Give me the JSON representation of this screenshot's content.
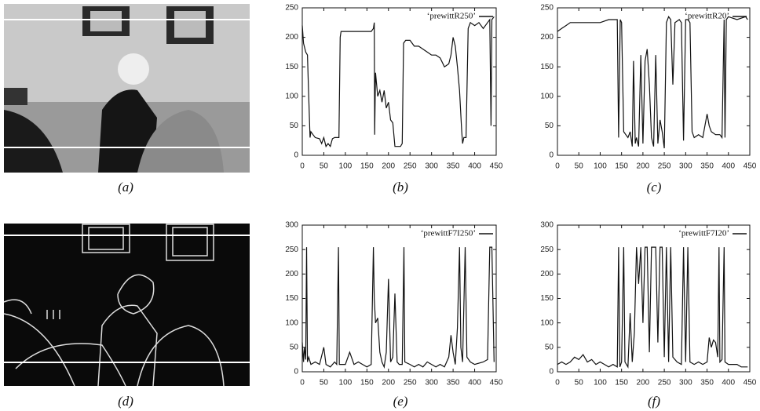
{
  "captions": [
    "(a)",
    "(b)",
    "(c)",
    "(d)",
    "(e)",
    "(f)"
  ],
  "chart_data": [
    {
      "type": "line",
      "xlim": [
        0,
        450
      ],
      "xticks": [
        0,
        50,
        100,
        150,
        200,
        250,
        300,
        350,
        400,
        450
      ],
      "ylim": [
        0,
        250
      ],
      "yticks": [
        0,
        50,
        100,
        150,
        200,
        250
      ],
      "x": [
        0,
        3,
        8,
        12,
        15,
        18,
        20,
        25,
        30,
        40,
        45,
        50,
        55,
        60,
        65,
        70,
        75,
        80,
        85,
        88,
        90,
        100,
        120,
        140,
        160,
        165,
        167,
        168,
        170,
        175,
        180,
        185,
        190,
        195,
        200,
        205,
        210,
        215,
        220,
        228,
        232,
        235,
        240,
        250,
        260,
        270,
        280,
        290,
        300,
        310,
        320,
        330,
        340,
        345,
        350,
        355,
        360,
        365,
        370,
        372,
        375,
        380,
        385,
        390,
        400,
        410,
        420,
        430,
        435,
        438,
        440,
        445
      ],
      "series": [
        {
          "name": "‘prewittR250’",
          "color": "#111111",
          "values": [
            220,
            190,
            175,
            170,
            100,
            30,
            40,
            35,
            30,
            28,
            20,
            30,
            15,
            20,
            15,
            28,
            30,
            30,
            30,
            200,
            210,
            210,
            210,
            210,
            210,
            215,
            225,
            35,
            140,
            100,
            110,
            90,
            110,
            80,
            90,
            60,
            55,
            15,
            15,
            15,
            20,
            190,
            195,
            195,
            185,
            185,
            180,
            175,
            170,
            170,
            165,
            150,
            155,
            170,
            200,
            185,
            150,
            110,
            40,
            20,
            30,
            30,
            215,
            225,
            220,
            225,
            215,
            225,
            230,
            50,
            230,
            235
          ]
        }
      ]
    },
    {
      "type": "line",
      "xlim": [
        0,
        450
      ],
      "xticks": [
        0,
        50,
        100,
        150,
        200,
        250,
        300,
        350,
        400,
        450
      ],
      "ylim": [
        0,
        250
      ],
      "yticks": [
        0,
        50,
        100,
        150,
        200,
        250
      ],
      "x": [
        0,
        10,
        20,
        30,
        50,
        80,
        100,
        120,
        140,
        143,
        147,
        150,
        155,
        160,
        165,
        170,
        175,
        178,
        182,
        185,
        190,
        195,
        200,
        205,
        210,
        215,
        220,
        225,
        230,
        235,
        240,
        245,
        250,
        255,
        260,
        265,
        270,
        275,
        285,
        290,
        295,
        300,
        305,
        310,
        315,
        320,
        330,
        340,
        350,
        355,
        360,
        370,
        380,
        385,
        390,
        392,
        395,
        400,
        420,
        440,
        445
      ],
      "series": [
        {
          "name": "‘prewittR20’",
          "color": "#111111",
          "values": [
            210,
            215,
            220,
            225,
            225,
            225,
            225,
            230,
            230,
            30,
            230,
            225,
            40,
            35,
            30,
            40,
            15,
            160,
            20,
            30,
            15,
            170,
            20,
            160,
            180,
            120,
            30,
            15,
            170,
            20,
            60,
            40,
            12,
            225,
            235,
            230,
            120,
            225,
            230,
            225,
            25,
            230,
            230,
            225,
            40,
            30,
            35,
            30,
            70,
            50,
            40,
            35,
            35,
            30,
            230,
            30,
            230,
            235,
            230,
            235,
            230
          ]
        }
      ]
    },
    {
      "type": "line",
      "xlim": [
        0,
        450
      ],
      "xticks": [
        0,
        50,
        100,
        150,
        200,
        250,
        300,
        350,
        400,
        450
      ],
      "ylim": [
        0,
        300
      ],
      "yticks": [
        0,
        50,
        100,
        150,
        200,
        250,
        300
      ],
      "x": [
        0,
        3,
        5,
        8,
        10,
        12,
        15,
        20,
        30,
        40,
        50,
        55,
        65,
        75,
        80,
        84,
        86,
        100,
        110,
        120,
        130,
        140,
        150,
        160,
        165,
        167,
        170,
        175,
        180,
        185,
        190,
        195,
        200,
        205,
        210,
        215,
        220,
        225,
        232,
        236,
        238,
        250,
        260,
        270,
        280,
        290,
        300,
        310,
        320,
        330,
        340,
        345,
        350,
        355,
        360,
        365,
        368,
        372,
        378,
        382,
        390,
        400,
        420,
        430,
        435,
        440,
        445
      ],
      "series": [
        {
          "name": "‘prewittF7I250’",
          "color": "#111111",
          "values": [
            60,
            20,
            50,
            25,
            255,
            20,
            30,
            15,
            20,
            15,
            50,
            15,
            10,
            20,
            15,
            255,
            15,
            15,
            40,
            15,
            20,
            15,
            10,
            15,
            255,
            150,
            100,
            110,
            40,
            20,
            10,
            40,
            190,
            20,
            30,
            160,
            20,
            15,
            15,
            255,
            20,
            15,
            10,
            15,
            10,
            20,
            15,
            10,
            15,
            10,
            30,
            75,
            40,
            15,
            90,
            255,
            50,
            20,
            255,
            30,
            20,
            15,
            20,
            25,
            255,
            255,
            20
          ]
        }
      ]
    },
    {
      "type": "line",
      "xlim": [
        0,
        450
      ],
      "xticks": [
        0,
        50,
        100,
        150,
        200,
        250,
        300,
        350,
        400,
        450
      ],
      "ylim": [
        0,
        300
      ],
      "yticks": [
        0,
        50,
        100,
        150,
        200,
        250,
        300
      ],
      "x": [
        0,
        10,
        20,
        30,
        40,
        50,
        60,
        70,
        80,
        90,
        100,
        110,
        120,
        130,
        140,
        143,
        146,
        150,
        155,
        158,
        165,
        170,
        175,
        180,
        185,
        190,
        195,
        200,
        205,
        210,
        215,
        220,
        225,
        230,
        235,
        240,
        245,
        250,
        255,
        260,
        265,
        270,
        280,
        290,
        295,
        300,
        305,
        310,
        320,
        330,
        340,
        350,
        355,
        360,
        365,
        370,
        375,
        378,
        380,
        385,
        390,
        392,
        400,
        420,
        430,
        445
      ],
      "series": [
        {
          "name": "‘prewittF7I20’",
          "color": "#111111",
          "values": [
            15,
            20,
            15,
            20,
            30,
            25,
            35,
            20,
            25,
            15,
            20,
            15,
            10,
            15,
            10,
            255,
            10,
            20,
            255,
            20,
            10,
            120,
            20,
            80,
            255,
            180,
            255,
            100,
            255,
            255,
            40,
            255,
            255,
            255,
            60,
            255,
            255,
            30,
            255,
            20,
            255,
            30,
            20,
            15,
            255,
            20,
            255,
            20,
            15,
            20,
            15,
            20,
            70,
            50,
            65,
            60,
            30,
            255,
            20,
            25,
            255,
            20,
            15,
            15,
            10,
            10
          ]
        }
      ]
    }
  ]
}
